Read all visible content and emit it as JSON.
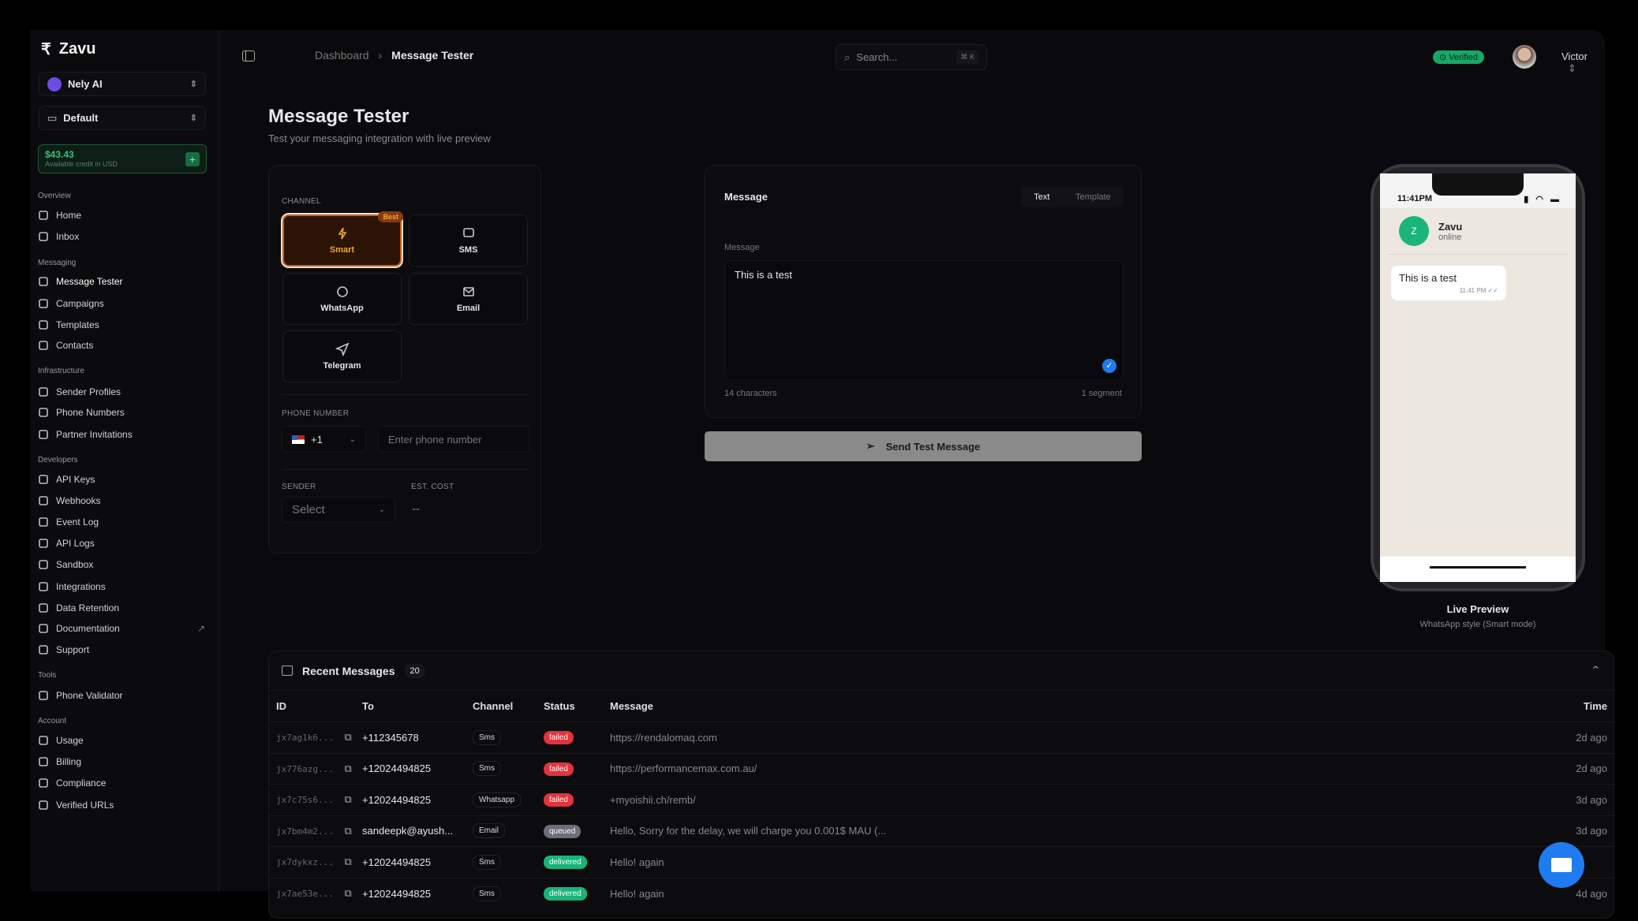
{
  "app": {
    "name": "Zavu",
    "org": "Nely AI",
    "project": "Default",
    "credit_amount": "$43.43",
    "credit_label": "Available credit in USD"
  },
  "sidebar": {
    "groups": [
      {
        "label": "Overview",
        "items": [
          {
            "label": "Home",
            "icon": "grid-icon"
          },
          {
            "label": "Inbox",
            "icon": "inbox-icon"
          }
        ]
      },
      {
        "label": "Messaging",
        "items": [
          {
            "label": "Message Tester",
            "icon": "test-tube-icon"
          },
          {
            "label": "Campaigns",
            "icon": "broadcast-icon"
          },
          {
            "label": "Templates",
            "icon": "file-text-icon"
          },
          {
            "label": "Contacts",
            "icon": "users-icon"
          }
        ]
      },
      {
        "label": "Infrastructure",
        "items": [
          {
            "label": "Sender Profiles",
            "icon": "send-icon"
          },
          {
            "label": "Phone Numbers",
            "icon": "phone-icon"
          },
          {
            "label": "Partner Invitations",
            "icon": "link-icon"
          }
        ]
      },
      {
        "label": "Developers",
        "items": [
          {
            "label": "API Keys",
            "icon": "key-icon"
          },
          {
            "label": "Webhooks",
            "icon": "webhook-icon"
          },
          {
            "label": "Event Log",
            "icon": "activity-icon"
          },
          {
            "label": "API Logs",
            "icon": "file-search-icon"
          },
          {
            "label": "Sandbox",
            "icon": "flask-icon"
          },
          {
            "label": "Integrations",
            "icon": "plug-icon"
          },
          {
            "label": "Data Retention",
            "icon": "clock-icon"
          },
          {
            "label": "Documentation",
            "icon": "file-code-icon"
          },
          {
            "label": "Support",
            "icon": "help-circle-icon"
          }
        ]
      },
      {
        "label": "Tools",
        "items": [
          {
            "label": "Phone Validator",
            "icon": "search-icon"
          }
        ]
      },
      {
        "label": "Account",
        "items": [
          {
            "label": "Usage",
            "icon": "bar-chart-icon"
          },
          {
            "label": "Billing",
            "icon": "credit-card-icon"
          },
          {
            "label": "Compliance",
            "icon": "shield-icon"
          },
          {
            "label": "Verified URLs",
            "icon": "link-icon"
          }
        ]
      }
    ]
  },
  "header": {
    "breadcrumb": [
      "Dashboard",
      "Message Tester"
    ],
    "search_placeholder": "Search...",
    "search_shortcut": "⌘ K",
    "verified": "Verified",
    "user": "Victor"
  },
  "page": {
    "title": "Message Tester",
    "subtitle": "Test your messaging integration with live preview"
  },
  "channel": {
    "label": "CHANNEL",
    "options": [
      "Smart",
      "SMS",
      "WhatsApp",
      "Email",
      "Telegram"
    ],
    "selected": "Smart",
    "badge": "Best",
    "accent": "#f0a630"
  },
  "phone": {
    "label": "PHONE NUMBER",
    "country_code": "+1",
    "placeholder": "Enter phone number"
  },
  "sender": {
    "label": "SENDER",
    "placeholder": "Select"
  },
  "cost": {
    "label": "EST. COST",
    "value": "--"
  },
  "message": {
    "title": "Message",
    "tabs": [
      "Text",
      "Template"
    ],
    "active_tab": "Text",
    "field_label": "Message",
    "value": "This is a test",
    "char_count": "14 characters",
    "segments": "1 segment",
    "send_label": "Send Test Message"
  },
  "preview": {
    "time": "11:41PM",
    "contact": "Zavu",
    "contact_initial": "Z",
    "status": "online",
    "bubble_text": "This is a test",
    "bubble_time": "11:41 PM",
    "title": "Live Preview",
    "subtitle": "WhatsApp style (Smart mode)"
  },
  "recent": {
    "title": "Recent Messages",
    "count": "20",
    "columns": [
      "ID",
      "To",
      "Channel",
      "Status",
      "Message",
      "Time"
    ],
    "rows": [
      {
        "id": "jx7ag1k6...",
        "to": "+112345678",
        "channel": "Sms",
        "status": "failed",
        "message": "https://rendalomaq.com",
        "time": "2d ago"
      },
      {
        "id": "jx776azg...",
        "to": "+12024494825",
        "channel": "Sms",
        "status": "failed",
        "message": "https://performancemax.com.au/",
        "time": "2d ago"
      },
      {
        "id": "jx7c75s6...",
        "to": "+12024494825",
        "channel": "Whatsapp",
        "status": "failed",
        "message": "+myoishii.ch/remb/",
        "time": "3d ago"
      },
      {
        "id": "jx7bm4m2...",
        "to": "sandeepk@ayush...",
        "channel": "Email",
        "status": "queued",
        "message": "Hello, Sorry for the delay, we will charge you 0.001$ MAU (...",
        "time": "3d ago"
      },
      {
        "id": "jx7dykxz...",
        "to": "+12024494825",
        "channel": "Sms",
        "status": "delivered",
        "message": "Hello! again",
        "time": ""
      },
      {
        "id": "jx7ae53e...",
        "to": "+12024494825",
        "channel": "Sms",
        "status": "delivered",
        "message": "Hello! again",
        "time": "4d ago"
      }
    ]
  }
}
